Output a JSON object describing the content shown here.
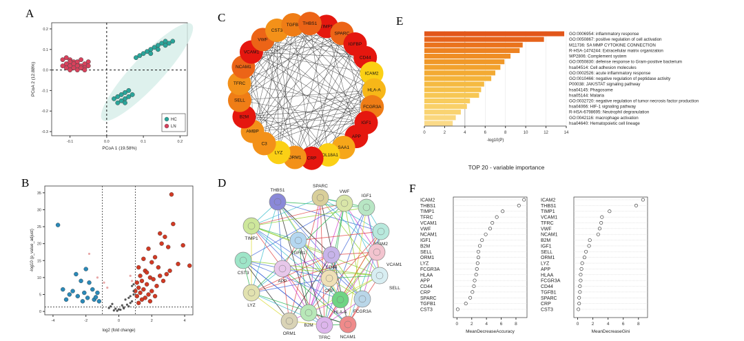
{
  "panel_labels": {
    "A": "A",
    "B": "B",
    "C": "C",
    "D": "D",
    "E": "E",
    "F": "F"
  },
  "chart_data": [
    {
      "panel": "A",
      "type": "scatter",
      "xlabel": "PCoA 1 (19.58%)",
      "ylabel": "PCoA 2 (12.88%)",
      "xlim": [
        -0.15,
        0.22
      ],
      "ylim": [
        -0.32,
        0.23
      ],
      "xticks": [
        "-0.1",
        "0.0",
        "0.1",
        "0.2"
      ],
      "yticks": [
        "0.2",
        "0.1",
        "0.0",
        "-0.1",
        "-0.2",
        "-0.3"
      ],
      "legend": {
        "position": "bottom-right",
        "entries": [
          "HC",
          "LN"
        ]
      },
      "colors": {
        "HC": "#2aa59a",
        "LN": "#d8415c",
        "ellipse": "#d6eee9"
      },
      "series": [
        {
          "name": "HC",
          "points": [
            [
              0.15,
              0.13
            ],
            [
              0.16,
              0.14
            ],
            [
              0.17,
              0.13
            ],
            [
              0.18,
              0.14
            ],
            [
              0.14,
              0.12
            ],
            [
              0.13,
              0.11
            ],
            [
              0.12,
              0.1
            ],
            [
              0.11,
              0.09
            ],
            [
              0.1,
              0.08
            ],
            [
              0.09,
              0.07
            ],
            [
              0.14,
              0.1
            ],
            [
              0.12,
              0.08
            ],
            [
              0.16,
              0.12
            ],
            [
              0.08,
              0.06
            ],
            [
              0.06,
              -0.1
            ],
            [
              0.05,
              -0.11
            ],
            [
              0.04,
              -0.12
            ],
            [
              0.03,
              -0.13
            ],
            [
              0.05,
              -0.14
            ],
            [
              0.06,
              -0.13
            ],
            [
              0.04,
              -0.15
            ],
            [
              0.03,
              -0.16
            ],
            [
              0.07,
              -0.12
            ],
            [
              0.02,
              -0.14
            ],
            [
              0.05,
              -0.16
            ]
          ]
        },
        {
          "name": "LN",
          "points": [
            [
              -0.11,
              0.06
            ],
            [
              -0.1,
              0.05
            ],
            [
              -0.09,
              0.04
            ],
            [
              -0.08,
              0.03
            ],
            [
              -0.07,
              0.02
            ],
            [
              -0.06,
              0.01
            ],
            [
              -0.12,
              0.05
            ],
            [
              -0.11,
              0.03
            ],
            [
              -0.1,
              0.02
            ],
            [
              -0.09,
              0.01
            ],
            [
              -0.08,
              0.04
            ],
            [
              -0.07,
              0.05
            ],
            [
              -0.06,
              0.03
            ],
            [
              -0.05,
              0.02
            ],
            [
              -0.11,
              0.01
            ],
            [
              -0.1,
              0.0
            ],
            [
              -0.09,
              0.03
            ],
            [
              -0.08,
              0.0
            ],
            [
              -0.07,
              0.01
            ],
            [
              -0.12,
              0.02
            ],
            [
              -0.06,
              0.0
            ],
            [
              -0.05,
              0.04
            ],
            [
              -0.1,
              0.04
            ],
            [
              -0.08,
              0.02
            ]
          ]
        }
      ]
    },
    {
      "panel": "B",
      "type": "scatter",
      "xlabel": "log2 (fold change)",
      "ylabel": "-log10 (p_value_adjust)",
      "xlim": [
        -4.5,
        4.5
      ],
      "ylim": [
        -1,
        37
      ],
      "xticks": [
        "-4",
        "-2",
        "0",
        "2",
        "4"
      ],
      "yticks": [
        "0",
        "5",
        "10",
        "15",
        "20",
        "25",
        "30",
        "35"
      ],
      "thresholds": {
        "x": [
          -1,
          1
        ],
        "y": 1.3
      },
      "colors": {
        "down": "#2a89b8",
        "up": "#d23a24",
        "ns": "#555555",
        "weak": "#e8a7a7"
      },
      "series": [
        {
          "name": "down",
          "points": [
            [
              -3.7,
              25.5
            ],
            [
              -2.6,
              11.0
            ],
            [
              -2.0,
              12.5
            ],
            [
              -2.3,
              9.0
            ],
            [
              -1.8,
              8.5
            ],
            [
              -3.4,
              6.5
            ],
            [
              -3.0,
              5.0
            ],
            [
              -2.5,
              4.5
            ],
            [
              -1.9,
              4.0
            ],
            [
              -1.5,
              3.5
            ],
            [
              -2.2,
              3.0
            ],
            [
              -1.3,
              5.5
            ],
            [
              -3.2,
              3.5
            ],
            [
              -2.8,
              6.0
            ],
            [
              -1.6,
              6.5
            ],
            [
              -1.2,
              3.0
            ],
            [
              -2.1,
              5.5
            ],
            [
              -1.4,
              4.2
            ]
          ]
        },
        {
          "name": "up",
          "points": [
            [
              3.2,
              34.5
            ],
            [
              3.3,
              25.8
            ],
            [
              2.5,
              23.0
            ],
            [
              2.8,
              22.0
            ],
            [
              3.0,
              19.0
            ],
            [
              3.9,
              19.5
            ],
            [
              2.6,
              20.0
            ],
            [
              1.8,
              18.5
            ],
            [
              2.2,
              16.0
            ],
            [
              3.6,
              14.0
            ],
            [
              4.3,
              13.5
            ],
            [
              1.5,
              15.5
            ],
            [
              2.0,
              14.5
            ],
            [
              2.4,
              13.0
            ],
            [
              1.2,
              13.0
            ],
            [
              1.6,
              12.0
            ],
            [
              2.9,
              11.0
            ],
            [
              1.3,
              10.5
            ],
            [
              1.9,
              10.0
            ],
            [
              2.1,
              9.5
            ],
            [
              1.4,
              9.0
            ],
            [
              2.7,
              9.0
            ],
            [
              1.1,
              8.5
            ],
            [
              1.7,
              8.0
            ],
            [
              2.3,
              7.5
            ],
            [
              1.2,
              7.0
            ],
            [
              1.5,
              6.5
            ],
            [
              2.0,
              6.0
            ],
            [
              1.3,
              5.5
            ],
            [
              1.8,
              5.0
            ],
            [
              1.1,
              4.5
            ],
            [
              1.6,
              4.0
            ],
            [
              2.2,
              4.5
            ],
            [
              1.4,
              3.5
            ],
            [
              1.9,
              3.0
            ],
            [
              1.2,
              2.5
            ],
            [
              3.1,
              12.0
            ],
            [
              2.5,
              10.5
            ],
            [
              1.0,
              6.0
            ],
            [
              1.7,
              11.5
            ]
          ]
        },
        {
          "name": "ns",
          "points": [
            [
              0.1,
              0.5
            ],
            [
              -0.2,
              0.8
            ],
            [
              0.3,
              1.2
            ],
            [
              -0.5,
              1.5
            ],
            [
              0.5,
              2.0
            ],
            [
              0.8,
              3.0
            ],
            [
              0.6,
              4.0
            ],
            [
              0.9,
              5.0
            ],
            [
              -0.3,
              0.3
            ],
            [
              0.2,
              1.8
            ],
            [
              0.7,
              2.5
            ],
            [
              -0.6,
              1.0
            ],
            [
              0.4,
              3.5
            ],
            [
              0.9,
              6.0
            ],
            [
              0.8,
              7.5
            ],
            [
              -0.1,
              0.2
            ],
            [
              0.0,
              0.6
            ],
            [
              0.6,
              1.5
            ],
            [
              -0.4,
              2.2
            ],
            [
              0.3,
              0.9
            ],
            [
              0.7,
              4.5
            ],
            [
              0.9,
              8.0
            ]
          ]
        },
        {
          "name": "weak",
          "points": [
            [
              -0.9,
              8.5
            ],
            [
              -0.7,
              7.0
            ],
            [
              0.8,
              9.0
            ],
            [
              -1.3,
              10.0
            ],
            [
              -1.8,
              17.0
            ],
            [
              0.7,
              10.5
            ]
          ]
        }
      ]
    },
    {
      "panel": "E",
      "type": "bar",
      "orientation": "horizontal",
      "xlabel": "-log10(P)",
      "xlim": [
        0,
        14
      ],
      "xticks": [
        "0",
        "2",
        "4",
        "6",
        "8",
        "10",
        "12",
        "14"
      ],
      "categories": [
        "GO:0006954: inflammatory response",
        "GO:0050867: positive regulation of cell activation",
        "M11736: SA MMP CYTOKINE CONNECTION",
        "R-HSA-1474244: Extracellular matrix organization",
        "WP2806: Complement system",
        "GO:0050830: defense response to Gram-positive bacterium",
        "hsa04514: Cell adhesion molecules",
        "GO:0002526: acute inflammatory response",
        "GO:0010466: negative regulation of peptidase activity",
        "P00038: JAK/STAT signaling pathway",
        "hsa04145: Phagosome",
        "hsa05144: Malaria",
        "GO:0032720: negative regulation of tumor necrosis factor production",
        "hsa04066: HIF-1 signaling pathway",
        "R-HSA-6798695: Neutrophil degranulation",
        "GO:0042116: macrophage activation",
        "hsa04640: Hematopoietic cell lineage"
      ],
      "values": [
        13.8,
        11.8,
        9.7,
        9.4,
        8.5,
        7.9,
        7.5,
        7.0,
        6.6,
        5.9,
        5.6,
        5.4,
        4.5,
        4.2,
        3.6,
        3.1,
        2.8
      ]
    },
    {
      "panel": "F",
      "type": "scatter",
      "title": "TOP 20 - variable importance",
      "subplots": [
        {
          "xlabel": "MeanDecreaseAccuracy",
          "xlim": [
            -0.5,
            9.5
          ],
          "xticks": [
            "0",
            "2",
            "4",
            "6",
            "8"
          ],
          "categories": [
            "ICAM2",
            "THBS1",
            "TIMP1",
            "TFRC",
            "VCAM1",
            "VWF",
            "NCAM1",
            "IGF1",
            "B2M",
            "SELL",
            "ORM1",
            "LYZ",
            "FCGR3A",
            "HLAA",
            "APP",
            "CD44",
            "CRP",
            "SPARC",
            "TGFB1",
            "CST3"
          ],
          "values": [
            9.1,
            8.4,
            6.2,
            5.4,
            4.8,
            4.5,
            3.9,
            3.4,
            3.1,
            2.9,
            2.9,
            2.8,
            2.7,
            2.6,
            2.4,
            2.3,
            2.1,
            1.8,
            1.2,
            0.1
          ]
        },
        {
          "xlabel": "MeanDecreaseGini",
          "xlim": [
            -0.5,
            9.2
          ],
          "xticks": [
            "0",
            "2",
            "4",
            "6",
            "8"
          ],
          "categories": [
            "ICAM2",
            "THBS1",
            "TIMP1",
            "VCAM1",
            "TFRC",
            "VWF",
            "NCAM1",
            "B2M",
            "IGF1",
            "SELL",
            "ORM1",
            "LYZ",
            "APP",
            "HLAA",
            "FCGR3A",
            "CD44",
            "TGFB1",
            "SPARC",
            "CRP",
            "CST3"
          ],
          "values": [
            8.6,
            7.7,
            4.2,
            3.2,
            3.1,
            2.9,
            2.7,
            1.6,
            1.5,
            1.1,
            0.9,
            0.6,
            0.5,
            0.4,
            0.4,
            0.3,
            0.3,
            0.2,
            0.2,
            0.1
          ]
        }
      ]
    }
  ],
  "network_c": {
    "nodes": [
      {
        "label": "TIMP1",
        "color": "#e5170f"
      },
      {
        "label": "SPARC",
        "color": "#ec6417"
      },
      {
        "label": "IGFBP",
        "color": "#e5170f"
      },
      {
        "label": "CD44",
        "color": "#e5170f"
      },
      {
        "label": "ICAM2",
        "color": "#fbd015"
      },
      {
        "label": "HLA-A",
        "color": "#f7b718"
      },
      {
        "label": "FCGR3A",
        "color": "#ef7d16"
      },
      {
        "label": "IGF1",
        "color": "#e5170f"
      },
      {
        "label": "APP",
        "color": "#e5170f"
      },
      {
        "label": "SAA1",
        "color": "#f6a61a"
      },
      {
        "label": "COL18A1",
        "color": "#fbd015"
      },
      {
        "label": "CRP",
        "color": "#e5170f"
      },
      {
        "label": "ORM1",
        "color": "#f39119"
      },
      {
        "label": "LYZ",
        "color": "#fbd015"
      },
      {
        "label": "C3",
        "color": "#f39119"
      },
      {
        "label": "AMBP",
        "color": "#f39119"
      },
      {
        "label": "B2M",
        "color": "#e5170f"
      },
      {
        "label": "SELL",
        "color": "#ef7d16"
      },
      {
        "label": "TFRC",
        "color": "#f39119"
      },
      {
        "label": "NCAM1",
        "color": "#ec6417"
      },
      {
        "label": "VCAM1",
        "color": "#e5170f"
      },
      {
        "label": "VWF",
        "color": "#ec6417"
      },
      {
        "label": "CST3",
        "color": "#f39119"
      },
      {
        "label": "TGFBI",
        "color": "#ef7d16"
      },
      {
        "label": "THBS1",
        "color": "#ec6417"
      }
    ]
  },
  "network_d": {
    "nodes": [
      {
        "label": "THBS1",
        "color": "#8a88d8"
      },
      {
        "label": "SPARC",
        "color": "#d9cf9a"
      },
      {
        "label": "VWF",
        "color": "#d9e6a8"
      },
      {
        "label": "IGF1",
        "color": "#b8e6c4"
      },
      {
        "label": "TIMP1",
        "color": "#cde79b"
      },
      {
        "label": "ICAM2",
        "color": "#b8e9dd"
      },
      {
        "label": "TGFB1",
        "color": "#b4d7f0"
      },
      {
        "label": "CD44",
        "color": "#c7b4ea"
      },
      {
        "label": "VCAM1",
        "color": "#f3c4cf"
      },
      {
        "label": "CST3",
        "color": "#9ee5c8"
      },
      {
        "label": "APP",
        "color": "#e7c7ea"
      },
      {
        "label": "CRP",
        "color": "#efe0b6"
      },
      {
        "label": "SELL",
        "color": "#d8eef2"
      },
      {
        "label": "HLA-A",
        "color": "#6fd484"
      },
      {
        "label": "LYZ",
        "color": "#e2e2b0"
      },
      {
        "label": "FCGR3A",
        "color": "#b9d6e8"
      },
      {
        "label": "B2M",
        "color": "#b8e8b8"
      },
      {
        "label": "ORM1",
        "color": "#d9d3b6"
      },
      {
        "label": "TFRC",
        "color": "#ddb6ec"
      },
      {
        "label": "NCAM1",
        "color": "#ef8a8a"
      }
    ]
  }
}
